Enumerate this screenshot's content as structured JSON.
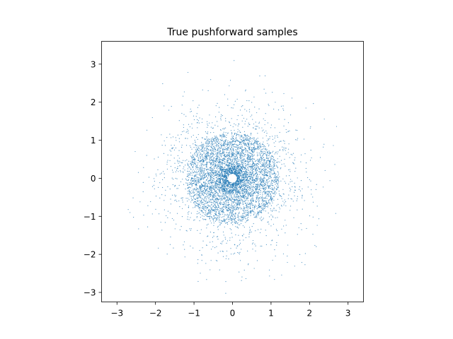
{
  "chart_data": {
    "type": "scatter",
    "title": "True pushforward samples",
    "xlabel": "",
    "ylabel": "",
    "xlim": [
      -3.4,
      3.4
    ],
    "ylim": [
      -3.25,
      3.6
    ],
    "xticks": [
      -3,
      -2,
      -1,
      0,
      1,
      2,
      3
    ],
    "yticks": [
      -3,
      -2,
      -1,
      0,
      1,
      2,
      3
    ],
    "xtick_labels": [
      "−3",
      "−2",
      "−1",
      "0",
      "1",
      "2",
      "3"
    ],
    "ytick_labels": [
      "−3",
      "−2",
      "−1",
      "0",
      "1",
      "2",
      "3"
    ],
    "grid": false,
    "legend": "none",
    "series": [
      {
        "color": "#1f77b4",
        "marker": "point",
        "distribution": {
          "kind": "radially-symmetric-cloud",
          "count": 6000,
          "radius_max": 3.1,
          "dense_ring_radius": 1.2,
          "hollow_center_radius": 0.12
        }
      }
    ]
  }
}
